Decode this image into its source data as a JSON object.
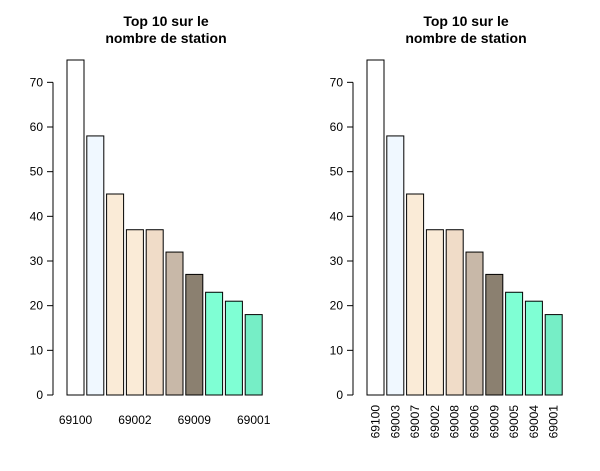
{
  "chart_data": [
    {
      "type": "bar",
      "title_lines": [
        "Top 10 sur le",
        "nombre de station"
      ],
      "categories": [
        "69100",
        "69003",
        "69007",
        "69002",
        "69008",
        "69006",
        "69009",
        "69005",
        "69004",
        "69001"
      ],
      "values": [
        75,
        58,
        45,
        37,
        37,
        32,
        27,
        23,
        21,
        18
      ],
      "colors": [
        "#FFFFFF",
        "#F0F8FF",
        "#FAEBD7",
        "#FAEBD7",
        "#F0DCC8",
        "#C8B8A8",
        "#8B8070",
        "#7FFFD4",
        "#7FFFD4",
        "#76EEC6"
      ],
      "visible_x_labels": [
        "69100",
        "69002",
        "69009",
        "69001"
      ],
      "yticks": [
        "0",
        "10",
        "20",
        "30",
        "40",
        "50",
        "60",
        "70"
      ],
      "ylim": [
        0,
        75
      ],
      "x_label_orientation": "horizontal"
    },
    {
      "type": "bar",
      "title_lines": [
        "Top 10 sur le",
        "nombre de station"
      ],
      "categories": [
        "69100",
        "69003",
        "69007",
        "69002",
        "69008",
        "69006",
        "69009",
        "69005",
        "69004",
        "69001"
      ],
      "values": [
        75,
        58,
        45,
        37,
        37,
        32,
        27,
        23,
        21,
        18
      ],
      "colors": [
        "#FFFFFF",
        "#F0F8FF",
        "#FAEBD7",
        "#FAEBD7",
        "#F0DCC8",
        "#C8B8A8",
        "#8B8070",
        "#7FFFD4",
        "#7FFFD4",
        "#76EEC6"
      ],
      "visible_x_labels": [
        "69100",
        "69003",
        "69007",
        "69002",
        "69008",
        "69006",
        "69009",
        "69005",
        "69004",
        "69001"
      ],
      "yticks": [
        "0",
        "10",
        "20",
        "30",
        "40",
        "50",
        "60",
        "70"
      ],
      "ylim": [
        0,
        75
      ],
      "x_label_orientation": "vertical"
    }
  ]
}
